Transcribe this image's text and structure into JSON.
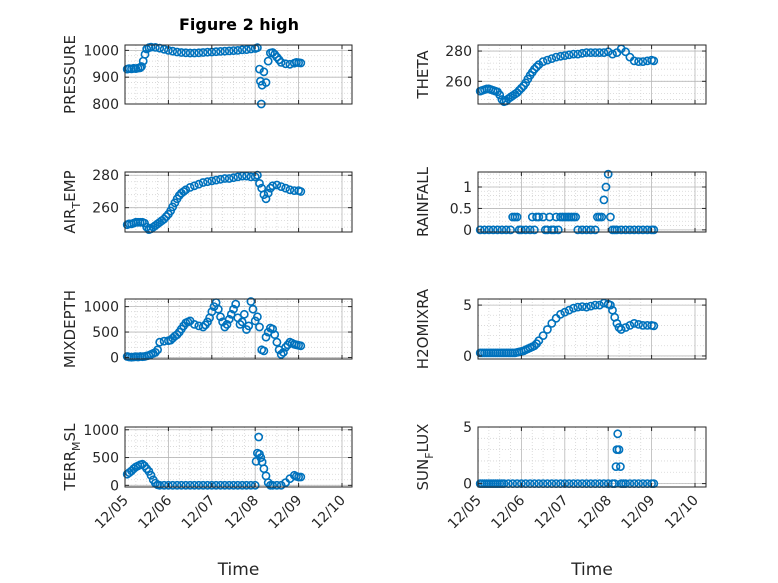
{
  "title": "Figure 2 high",
  "colors": {
    "marker": "#0072BD",
    "axis": "#262626",
    "grid": "#b8b8b8",
    "minor_grid": "#d4d4d4"
  },
  "x_ticks": [
    "12/05",
    "12/06",
    "12/07",
    "12/08",
    "12/09",
    "12/10"
  ],
  "xlabel": "Time",
  "chart_data": [
    {
      "type": "scatter",
      "ylabel": "PRESSURE",
      "ylabel_sub": "",
      "ylabel_after": "",
      "xlim": [
        5.0,
        9.25
      ],
      "ylim": [
        800,
        1020
      ],
      "yticks": [
        800,
        900,
        1000
      ],
      "grid": true,
      "x": [
        5.05,
        5.1,
        5.15,
        5.2,
        5.25,
        5.3,
        5.35,
        5.38,
        5.42,
        5.46,
        5.5,
        5.55,
        5.6,
        5.7,
        5.8,
        5.9,
        6.0,
        6.1,
        6.2,
        6.3,
        6.4,
        6.5,
        6.6,
        6.7,
        6.8,
        6.9,
        7.0,
        7.1,
        7.2,
        7.3,
        7.4,
        7.5,
        7.6,
        7.7,
        7.8,
        7.9,
        8.0,
        8.05,
        8.1,
        8.12,
        8.14,
        8.16,
        8.2,
        8.25,
        8.3,
        8.35,
        8.4,
        8.45,
        8.5,
        8.55,
        8.6,
        8.7,
        8.8,
        8.9,
        8.95,
        9.0,
        9.05
      ],
      "y": [
        930,
        932,
        931,
        933,
        932,
        934,
        935,
        940,
        960,
        985,
        1005,
        1010,
        1012,
        1011,
        1008,
        1004,
        1000,
        997,
        994,
        992,
        991,
        990,
        990,
        991,
        992,
        993,
        994,
        995,
        996,
        997,
        998,
        999,
        1000,
        1002,
        1003,
        1005,
        1007,
        1010,
        930,
        885,
        800,
        870,
        920,
        880,
        960,
        990,
        992,
        985,
        975,
        965,
        955,
        950,
        948,
        952,
        955,
        954,
        953
      ]
    },
    {
      "type": "scatter",
      "ylabel": "THETA",
      "ylabel_sub": "",
      "ylabel_after": "",
      "xlim": [
        5.0,
        9.25
      ],
      "ylim": [
        245,
        284
      ],
      "yticks": [
        260,
        280
      ],
      "grid": true,
      "x": [
        5.05,
        5.1,
        5.15,
        5.2,
        5.25,
        5.3,
        5.35,
        5.4,
        5.45,
        5.5,
        5.55,
        5.6,
        5.65,
        5.7,
        5.75,
        5.8,
        5.85,
        5.9,
        5.95,
        6.0,
        6.05,
        6.1,
        6.15,
        6.2,
        6.25,
        6.3,
        6.35,
        6.4,
        6.5,
        6.6,
        6.7,
        6.8,
        6.9,
        7.0,
        7.1,
        7.2,
        7.3,
        7.4,
        7.5,
        7.6,
        7.7,
        7.8,
        7.9,
        8.0,
        8.1,
        8.2,
        8.3,
        8.4,
        8.5,
        8.6,
        8.7,
        8.8,
        8.9,
        9.0,
        9.05
      ],
      "y": [
        253.5,
        254,
        254.5,
        255,
        255,
        254.5,
        254,
        253.5,
        253,
        251,
        248,
        246.5,
        247,
        248.5,
        249.5,
        250.5,
        251.5,
        252.5,
        254,
        255.5,
        257,
        259,
        261.5,
        264,
        266,
        268,
        269.5,
        271,
        273,
        274,
        275,
        276,
        276.5,
        277,
        277.5,
        278,
        278,
        278.5,
        279,
        279,
        279,
        279,
        279,
        279.5,
        278,
        279,
        281.5,
        279.5,
        276,
        273.5,
        273,
        273,
        273.5,
        274,
        273.5
      ]
    },
    {
      "type": "scatter",
      "ylabel": "AIR",
      "ylabel_sub": "T",
      "ylabel_after": "EMP",
      "xlim": [
        5.0,
        9.25
      ],
      "ylim": [
        245,
        282
      ],
      "yticks": [
        260,
        280
      ],
      "grid": true,
      "x": [
        5.05,
        5.1,
        5.15,
        5.2,
        5.25,
        5.3,
        5.35,
        5.4,
        5.45,
        5.5,
        5.55,
        5.6,
        5.65,
        5.7,
        5.75,
        5.8,
        5.85,
        5.9,
        5.95,
        6.0,
        6.05,
        6.1,
        6.15,
        6.2,
        6.25,
        6.3,
        6.35,
        6.4,
        6.5,
        6.6,
        6.7,
        6.8,
        6.9,
        7.0,
        7.1,
        7.2,
        7.3,
        7.4,
        7.5,
        7.6,
        7.7,
        7.8,
        7.9,
        8.0,
        8.05,
        8.1,
        8.15,
        8.2,
        8.25,
        8.3,
        8.35,
        8.4,
        8.5,
        8.6,
        8.7,
        8.8,
        8.9,
        9.0,
        9.05
      ],
      "y": [
        249.5,
        250,
        250,
        250.5,
        251,
        251,
        251,
        251,
        250.5,
        248,
        246.5,
        247,
        248,
        249,
        250,
        251,
        252,
        253,
        254.5,
        256,
        258,
        260.5,
        263,
        265.5,
        267.5,
        269,
        270,
        271,
        272.5,
        273.5,
        274.5,
        275.5,
        276,
        276.5,
        277,
        277.5,
        278,
        278,
        278.5,
        279,
        279.5,
        279.5,
        279,
        279,
        280,
        275,
        272,
        268,
        265.5,
        269,
        272,
        273.5,
        274,
        273,
        272,
        271,
        270.5,
        270.5,
        270
      ]
    },
    {
      "type": "scatter",
      "ylabel": "RAINFALL",
      "ylabel_sub": "",
      "ylabel_after": "",
      "xlim": [
        5.0,
        9.25
      ],
      "ylim": [
        -0.05,
        1.35
      ],
      "yticks": [
        0,
        0.5,
        1
      ],
      "grid": true,
      "x": [
        5.05,
        5.15,
        5.25,
        5.35,
        5.45,
        5.55,
        5.65,
        5.75,
        5.8,
        5.85,
        5.9,
        5.95,
        6.0,
        6.1,
        6.2,
        6.25,
        6.3,
        6.35,
        6.4,
        6.5,
        6.55,
        6.6,
        6.65,
        6.7,
        6.75,
        6.8,
        6.85,
        6.9,
        6.95,
        7.0,
        7.05,
        7.1,
        7.15,
        7.2,
        7.25,
        7.3,
        7.4,
        7.5,
        7.6,
        7.7,
        7.75,
        7.8,
        7.85,
        7.9,
        7.95,
        8.0,
        8.05,
        8.1,
        8.15,
        8.2,
        8.3,
        8.4,
        8.5,
        8.6,
        8.7,
        8.8,
        8.9,
        9.0,
        9.05
      ],
      "y": [
        0,
        0,
        0,
        0,
        0,
        0,
        0,
        0,
        0.3,
        0.3,
        0.3,
        0,
        0,
        0,
        0,
        0.3,
        0,
        0.3,
        0.3,
        0.3,
        0,
        0,
        0.3,
        0,
        0,
        0.3,
        0,
        0.3,
        0.3,
        0.3,
        0.3,
        0.3,
        0.3,
        0.3,
        0.3,
        0,
        0,
        0,
        0,
        0,
        0.3,
        0.3,
        0.3,
        0.7,
        1,
        1.3,
        0.3,
        0,
        0,
        0,
        0,
        0,
        0,
        0,
        0,
        0,
        0,
        0,
        0
      ]
    },
    {
      "type": "scatter",
      "ylabel": "MIXDEPTH",
      "ylabel_sub": "",
      "ylabel_after": "",
      "xlim": [
        5.0,
        9.25
      ],
      "ylim": [
        -30,
        1150
      ],
      "yticks": [
        0,
        500,
        1000
      ],
      "grid": true,
      "x": [
        5.05,
        5.1,
        5.15,
        5.2,
        5.25,
        5.3,
        5.35,
        5.4,
        5.45,
        5.5,
        5.55,
        5.6,
        5.65,
        5.7,
        5.75,
        5.8,
        5.9,
        6.0,
        6.05,
        6.1,
        6.15,
        6.2,
        6.25,
        6.3,
        6.35,
        6.4,
        6.45,
        6.5,
        6.6,
        6.7,
        6.8,
        6.85,
        6.9,
        6.95,
        7.0,
        7.05,
        7.1,
        7.15,
        7.2,
        7.25,
        7.3,
        7.35,
        7.4,
        7.45,
        7.5,
        7.55,
        7.6,
        7.65,
        7.7,
        7.75,
        7.8,
        7.85,
        7.9,
        7.95,
        8.0,
        8.05,
        8.1,
        8.15,
        8.2,
        8.25,
        8.3,
        8.35,
        8.4,
        8.45,
        8.5,
        8.55,
        8.6,
        8.65,
        8.7,
        8.75,
        8.8,
        8.85,
        8.9,
        8.95,
        9.0,
        9.05
      ],
      "y": [
        20,
        10,
        5,
        10,
        15,
        10,
        20,
        15,
        20,
        30,
        40,
        60,
        80,
        100,
        150,
        300,
        320,
        330,
        340,
        380,
        420,
        450,
        500,
        560,
        620,
        680,
        700,
        720,
        650,
        620,
        600,
        640,
        700,
        780,
        900,
        1000,
        1080,
        950,
        800,
        700,
        600,
        650,
        750,
        850,
        950,
        1050,
        780,
        650,
        700,
        850,
        550,
        620,
        1100,
        950,
        720,
        800,
        600,
        150,
        130,
        400,
        500,
        580,
        560,
        450,
        300,
        150,
        60,
        100,
        200,
        250,
        300,
        280,
        260,
        250,
        240,
        230
      ]
    },
    {
      "type": "scatter",
      "ylabel": "H2OMIXRA",
      "ylabel_sub": "",
      "ylabel_after": "",
      "xlim": [
        5.0,
        9.25
      ],
      "ylim": [
        -0.3,
        5.6
      ],
      "yticks": [
        0,
        5
      ],
      "grid": true,
      "x": [
        5.05,
        5.1,
        5.15,
        5.2,
        5.25,
        5.3,
        5.35,
        5.4,
        5.45,
        5.5,
        5.55,
        5.6,
        5.65,
        5.7,
        5.75,
        5.8,
        5.85,
        5.9,
        5.95,
        6.0,
        6.05,
        6.1,
        6.15,
        6.2,
        6.25,
        6.3,
        6.35,
        6.4,
        6.5,
        6.6,
        6.7,
        6.8,
        6.9,
        7.0,
        7.1,
        7.2,
        7.3,
        7.4,
        7.5,
        7.6,
        7.7,
        7.8,
        7.9,
        8.0,
        8.05,
        8.1,
        8.15,
        8.2,
        8.25,
        8.3,
        8.4,
        8.5,
        8.6,
        8.7,
        8.8,
        8.9,
        9.0,
        9.05
      ],
      "y": [
        0.3,
        0.3,
        0.3,
        0.3,
        0.3,
        0.3,
        0.3,
        0.3,
        0.3,
        0.3,
        0.3,
        0.3,
        0.3,
        0.3,
        0.3,
        0.3,
        0.3,
        0.35,
        0.4,
        0.45,
        0.5,
        0.6,
        0.7,
        0.8,
        0.9,
        1.0,
        1.2,
        1.5,
        2.0,
        2.6,
        3.2,
        3.7,
        4.1,
        4.3,
        4.5,
        4.7,
        4.8,
        4.85,
        4.8,
        4.9,
        5.0,
        5.0,
        5.2,
        5.1,
        5.0,
        4.5,
        3.8,
        3.2,
        2.8,
        2.6,
        2.8,
        3.0,
        3.2,
        3.1,
        3.0,
        3.0,
        3.0,
        2.95
      ]
    },
    {
      "type": "scatter",
      "ylabel": "TERR",
      "ylabel_sub": "M",
      "ylabel_after": "SL",
      "xlim": [
        5.0,
        9.25
      ],
      "ylim": [
        -30,
        1050
      ],
      "yticks": [
        0,
        500,
        1000
      ],
      "grid": true,
      "x": [
        5.05,
        5.1,
        5.15,
        5.2,
        5.25,
        5.3,
        5.35,
        5.4,
        5.45,
        5.5,
        5.55,
        5.6,
        5.65,
        5.7,
        5.75,
        5.8,
        5.9,
        6.0,
        6.1,
        6.2,
        6.3,
        6.4,
        6.5,
        6.6,
        6.7,
        6.8,
        6.9,
        7.0,
        7.1,
        7.2,
        7.3,
        7.4,
        7.5,
        7.6,
        7.7,
        7.8,
        7.9,
        8.0,
        8.02,
        8.05,
        8.08,
        8.1,
        8.13,
        8.16,
        8.2,
        8.25,
        8.3,
        8.35,
        8.4,
        8.5,
        8.6,
        8.7,
        8.8,
        8.9,
        8.95,
        9.0,
        9.05
      ],
      "y": [
        200,
        230,
        260,
        300,
        330,
        350,
        370,
        380,
        350,
        300,
        250,
        180,
        100,
        40,
        10,
        0,
        0,
        0,
        0,
        0,
        0,
        0,
        0,
        0,
        0,
        0,
        0,
        0,
        0,
        0,
        0,
        0,
        0,
        0,
        0,
        0,
        0,
        0,
        430,
        580,
        870,
        560,
        500,
        420,
        300,
        170,
        50,
        0,
        0,
        0,
        0,
        50,
        120,
        180,
        160,
        150,
        150
      ]
    },
    {
      "type": "scatter",
      "ylabel": "SUN",
      "ylabel_sub": "F",
      "ylabel_after": "LUX",
      "xlim": [
        5.0,
        9.25
      ],
      "ylim": [
        -0.3,
        5.0
      ],
      "yticks": [
        0,
        5
      ],
      "grid": true,
      "x": [
        5.05,
        5.1,
        5.15,
        5.2,
        5.25,
        5.3,
        5.35,
        5.4,
        5.45,
        5.5,
        5.55,
        5.6,
        5.7,
        5.8,
        5.9,
        6.0,
        6.1,
        6.2,
        6.3,
        6.4,
        6.5,
        6.6,
        6.7,
        6.8,
        6.9,
        7.0,
        7.1,
        7.2,
        7.3,
        7.4,
        7.5,
        7.6,
        7.7,
        7.8,
        7.9,
        8.0,
        8.1,
        8.15,
        8.18,
        8.2,
        8.22,
        8.25,
        8.28,
        8.3,
        8.35,
        8.4,
        8.5,
        8.6,
        8.7,
        8.8,
        8.9,
        9.0,
        9.05
      ],
      "y": [
        0,
        0,
        0,
        0,
        0,
        0,
        0,
        0,
        0,
        0,
        0,
        0,
        0,
        0,
        0,
        0,
        0,
        0,
        0,
        0,
        0,
        0,
        0,
        0,
        0,
        0,
        0,
        0,
        0,
        0,
        0,
        0,
        0,
        0,
        0,
        0,
        0,
        0,
        1.5,
        3.0,
        4.4,
        3.0,
        1.5,
        0,
        0,
        0,
        0,
        0,
        0,
        0,
        0,
        0,
        0
      ]
    }
  ]
}
